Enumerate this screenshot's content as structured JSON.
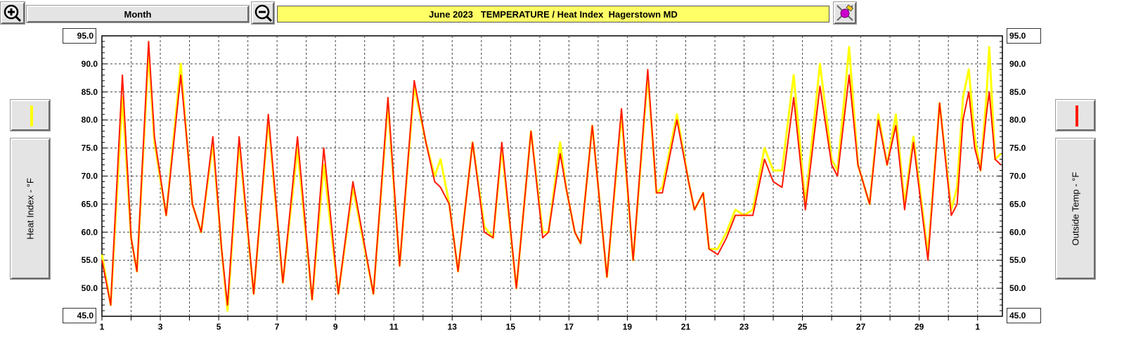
{
  "toolbar": {
    "period_label": "Month",
    "title": "June 2023   TEMPERATURE / Heat Index  Hagerstown MD"
  },
  "axes": {
    "left_top": "95.0",
    "left_bottom": "45.0",
    "right_top": "95.0",
    "right_bottom": "45.0",
    "left_label": "Heat Index - °F",
    "right_label": "Outside Temp - °F"
  },
  "colors": {
    "heat_index": "#ffff00",
    "outside_temp": "#ff1a00"
  },
  "chart_data": {
    "type": "line",
    "title": "June 2023   TEMPERATURE / Heat Index  Hagerstown MD",
    "xlabel": "",
    "ylabel": "Heat Index - °F",
    "y2label": "Outside Temp - °F",
    "ylim": [
      45,
      95
    ],
    "xlim": [
      1,
      31
    ],
    "grid": true,
    "x_ticks": [
      "1",
      "3",
      "5",
      "7",
      "9",
      "11",
      "13",
      "15",
      "17",
      "19",
      "21",
      "23",
      "25",
      "27",
      "29",
      "1"
    ],
    "y_ticks": [
      "50.0",
      "55.0",
      "60.0",
      "65.0",
      "70.0",
      "75.0",
      "80.0",
      "85.0",
      "90.0"
    ],
    "x_unit": "day",
    "series": [
      {
        "name": "Heat Index",
        "color": "#ffff00",
        "points": [
          [
            1.0,
            56
          ],
          [
            1.3,
            47
          ],
          [
            1.7,
            84
          ],
          [
            2.0,
            59
          ],
          [
            2.2,
            53
          ],
          [
            2.6,
            92
          ],
          [
            2.8,
            76
          ],
          [
            3.2,
            63
          ],
          [
            3.7,
            90
          ],
          [
            3.9,
            77
          ],
          [
            4.1,
            65
          ],
          [
            4.4,
            60
          ],
          [
            4.8,
            76
          ],
          [
            5.1,
            57
          ],
          [
            5.3,
            46
          ],
          [
            5.7,
            76
          ],
          [
            6.2,
            49
          ],
          [
            6.7,
            80
          ],
          [
            7.2,
            51
          ],
          [
            7.7,
            75
          ],
          [
            8.2,
            48
          ],
          [
            8.6,
            72
          ],
          [
            9.1,
            49
          ],
          [
            9.6,
            68
          ],
          [
            10.3,
            49
          ],
          [
            10.8,
            83
          ],
          [
            11.2,
            54
          ],
          [
            11.7,
            86
          ],
          [
            12.1,
            76
          ],
          [
            12.4,
            70
          ],
          [
            12.6,
            73
          ],
          [
            12.9,
            65
          ],
          [
            13.2,
            53
          ],
          [
            13.7,
            76
          ],
          [
            14.1,
            61
          ],
          [
            14.4,
            59
          ],
          [
            14.7,
            75
          ],
          [
            15.2,
            50
          ],
          [
            15.7,
            78
          ],
          [
            16.1,
            60
          ],
          [
            16.3,
            60
          ],
          [
            16.7,
            76
          ],
          [
            16.9,
            68
          ],
          [
            17.2,
            60
          ],
          [
            17.4,
            58
          ],
          [
            17.8,
            79
          ],
          [
            18.3,
            52
          ],
          [
            18.8,
            81
          ],
          [
            19.2,
            55
          ],
          [
            19.7,
            88
          ],
          [
            20.0,
            67
          ],
          [
            20.2,
            68
          ],
          [
            20.7,
            81
          ],
          [
            21.1,
            69
          ],
          [
            21.3,
            64
          ],
          [
            21.6,
            67
          ],
          [
            21.8,
            57
          ],
          [
            22.1,
            57
          ],
          [
            22.4,
            60
          ],
          [
            22.7,
            64
          ],
          [
            23.0,
            63
          ],
          [
            23.3,
            64
          ],
          [
            23.7,
            75
          ],
          [
            24.0,
            71
          ],
          [
            24.3,
            71
          ],
          [
            24.7,
            88
          ],
          [
            25.1,
            65
          ],
          [
            25.6,
            90
          ],
          [
            26.0,
            73
          ],
          [
            26.2,
            71
          ],
          [
            26.6,
            93
          ],
          [
            26.9,
            72
          ],
          [
            27.3,
            65
          ],
          [
            27.6,
            81
          ],
          [
            27.9,
            72
          ],
          [
            28.2,
            81
          ],
          [
            28.5,
            65
          ],
          [
            28.8,
            77
          ],
          [
            29.3,
            56
          ],
          [
            29.7,
            83
          ],
          [
            30.1,
            64
          ],
          [
            30.3,
            68
          ],
          [
            30.5,
            84
          ],
          [
            30.7,
            89
          ],
          [
            30.9,
            77
          ],
          [
            31.1,
            71
          ],
          [
            31.3,
            84
          ],
          [
            31.4,
            93
          ],
          [
            31.6,
            73
          ],
          [
            31.8,
            74
          ]
        ]
      },
      {
        "name": "Outside Temp",
        "color": "#ff1a00",
        "points": [
          [
            1.0,
            55
          ],
          [
            1.3,
            47
          ],
          [
            1.7,
            88
          ],
          [
            2.0,
            59
          ],
          [
            2.2,
            53
          ],
          [
            2.6,
            94
          ],
          [
            2.8,
            77
          ],
          [
            3.2,
            63
          ],
          [
            3.7,
            88
          ],
          [
            3.9,
            77
          ],
          [
            4.1,
            65
          ],
          [
            4.4,
            60
          ],
          [
            4.8,
            77
          ],
          [
            5.1,
            57
          ],
          [
            5.3,
            47
          ],
          [
            5.7,
            77
          ],
          [
            6.2,
            49
          ],
          [
            6.7,
            81
          ],
          [
            7.2,
            51
          ],
          [
            7.7,
            77
          ],
          [
            8.2,
            48
          ],
          [
            8.6,
            75
          ],
          [
            9.1,
            49
          ],
          [
            9.6,
            69
          ],
          [
            10.3,
            49
          ],
          [
            10.8,
            84
          ],
          [
            11.2,
            54
          ],
          [
            11.7,
            87
          ],
          [
            12.1,
            76
          ],
          [
            12.4,
            69
          ],
          [
            12.6,
            68
          ],
          [
            12.9,
            65
          ],
          [
            13.2,
            53
          ],
          [
            13.7,
            76
          ],
          [
            14.1,
            60
          ],
          [
            14.4,
            59
          ],
          [
            14.7,
            76
          ],
          [
            15.2,
            50
          ],
          [
            15.7,
            78
          ],
          [
            16.1,
            59
          ],
          [
            16.3,
            60
          ],
          [
            16.7,
            74
          ],
          [
            16.9,
            68
          ],
          [
            17.2,
            60
          ],
          [
            17.4,
            58
          ],
          [
            17.8,
            79
          ],
          [
            18.3,
            52
          ],
          [
            18.8,
            82
          ],
          [
            19.2,
            55
          ],
          [
            19.7,
            89
          ],
          [
            20.0,
            67
          ],
          [
            20.2,
            67
          ],
          [
            20.7,
            80
          ],
          [
            21.1,
            69
          ],
          [
            21.3,
            64
          ],
          [
            21.6,
            67
          ],
          [
            21.8,
            57
          ],
          [
            22.1,
            56
          ],
          [
            22.4,
            59
          ],
          [
            22.7,
            63
          ],
          [
            23.0,
            63
          ],
          [
            23.3,
            63
          ],
          [
            23.7,
            73
          ],
          [
            24.0,
            69
          ],
          [
            24.3,
            68
          ],
          [
            24.7,
            84
          ],
          [
            25.1,
            64
          ],
          [
            25.6,
            86
          ],
          [
            26.0,
            72
          ],
          [
            26.2,
            70
          ],
          [
            26.6,
            88
          ],
          [
            26.9,
            72
          ],
          [
            27.3,
            65
          ],
          [
            27.6,
            80
          ],
          [
            27.9,
            72
          ],
          [
            28.2,
            79
          ],
          [
            28.5,
            64
          ],
          [
            28.8,
            76
          ],
          [
            29.3,
            55
          ],
          [
            29.7,
            83
          ],
          [
            30.1,
            63
          ],
          [
            30.3,
            65
          ],
          [
            30.5,
            80
          ],
          [
            30.7,
            85
          ],
          [
            30.9,
            75
          ],
          [
            31.1,
            71
          ],
          [
            31.3,
            81
          ],
          [
            31.4,
            85
          ],
          [
            31.6,
            73
          ],
          [
            31.8,
            72
          ]
        ]
      }
    ]
  }
}
